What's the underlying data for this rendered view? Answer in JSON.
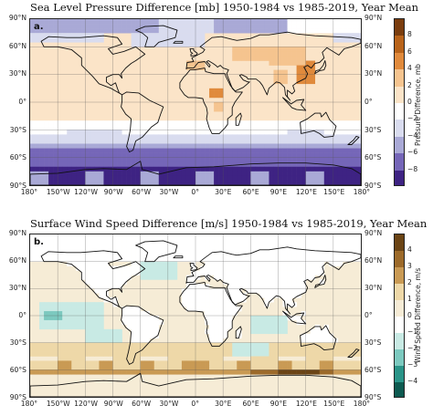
{
  "panels": [
    {
      "title": "Sea Level Pressure Difference [mb] 1950-1984 vs 1985-2019,  Year Mean",
      "letter": "a.",
      "colorbar": {
        "label": "Pressure Difference, mb",
        "ticks": [
          "8",
          "6",
          "4",
          "2",
          "0",
          "−2",
          "−4",
          "−6",
          "−8"
        ],
        "colors": [
          "#7a3d0e",
          "#b8631a",
          "#e08a3c",
          "#f5c48f",
          "#fbe4c8",
          "#ffffff",
          "#d9dcef",
          "#a9a9d6",
          "#7566b8",
          "#3e2383"
        ]
      }
    },
    {
      "title": "Surface Wind Speed Difference [m/s] 1950-1984 vs 1985-2019,  Year Mean",
      "letter": "b.",
      "colorbar": {
        "label": "Wind Speed Difference, m/s",
        "ticks": [
          "4",
          "3",
          "2",
          "1",
          "0",
          "−1",
          "−2",
          "−3",
          "−4"
        ],
        "colors": [
          "#6b4415",
          "#9c6a2a",
          "#c99a54",
          "#eed8a8",
          "#f6ecd6",
          "#ffffff",
          "#c8eae4",
          "#7cc9bf",
          "#2a9488",
          "#0d5a50"
        ]
      }
    }
  ],
  "lat_labels": [
    "90°N",
    "60°N",
    "30°N",
    "0°",
    "30°S",
    "60°S",
    "90°S"
  ],
  "lon_labels": [
    "180°",
    "150°W",
    "120°W",
    "90°W",
    "60°W",
    "30°W",
    "0°",
    "30°E",
    "60°E",
    "90°E",
    "120°E",
    "150°E",
    "180°"
  ],
  "icons": {
    "coastline": "world-coastline-icon"
  }
}
